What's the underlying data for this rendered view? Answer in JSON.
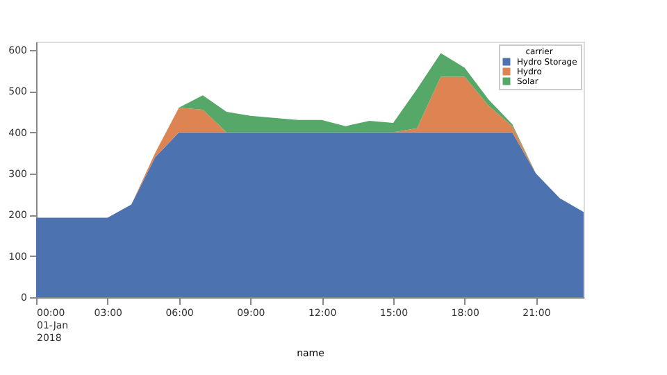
{
  "chart_data": {
    "type": "area",
    "stacked": true,
    "xlabel": "name",
    "legend_title": "carrier",
    "legend": "top right",
    "grid": false,
    "x": [
      "2018-01-01T00:00",
      "2018-01-01T01:00",
      "2018-01-01T02:00",
      "2018-01-01T03:00",
      "2018-01-01T04:00",
      "2018-01-01T05:00",
      "2018-01-01T06:00",
      "2018-01-01T07:00",
      "2018-01-01T08:00",
      "2018-01-01T09:00",
      "2018-01-01T10:00",
      "2018-01-01T11:00",
      "2018-01-01T12:00",
      "2018-01-01T13:00",
      "2018-01-01T14:00",
      "2018-01-01T15:00",
      "2018-01-01T16:00",
      "2018-01-01T17:00",
      "2018-01-01T18:00",
      "2018-01-01T19:00",
      "2018-01-01T20:00",
      "2018-01-01T21:00",
      "2018-01-01T22:00",
      "2018-01-01T23:00"
    ],
    "series": [
      {
        "name": "Hydro Storage",
        "color": "#4c72b0",
        "values": [
          193,
          193,
          193,
          193,
          225,
          340,
          400,
          400,
          400,
          400,
          400,
          400,
          400,
          400,
          400,
          400,
          400,
          400,
          400,
          400,
          400,
          300,
          240,
          207
        ]
      },
      {
        "name": "Hydro",
        "color": "#dd8452",
        "values": [
          0,
          0,
          0,
          0,
          0,
          10,
          60,
          55,
          0,
          0,
          0,
          0,
          0,
          0,
          0,
          0,
          10,
          135,
          135,
          65,
          15,
          0,
          0,
          0
        ]
      },
      {
        "name": "Solar",
        "color": "#55a868",
        "values": [
          0,
          0,
          0,
          0,
          0,
          0,
          0,
          35,
          50,
          40,
          35,
          30,
          30,
          15,
          28,
          23,
          95,
          57,
          22,
          15,
          5,
          0,
          0,
          0
        ]
      }
    ],
    "xlim": [
      "2018-01-01T00:00",
      "2018-01-01T23:00"
    ],
    "xticks": [
      {
        "value": "2018-01-01T00:00",
        "label": "00:00\n01-Jan\n2018"
      },
      {
        "value": "2018-01-01T03:00",
        "label": "03:00"
      },
      {
        "value": "2018-01-01T06:00",
        "label": "06:00"
      },
      {
        "value": "2018-01-01T09:00",
        "label": "09:00"
      },
      {
        "value": "2018-01-01T12:00",
        "label": "12:00"
      },
      {
        "value": "2018-01-01T15:00",
        "label": "15:00"
      },
      {
        "value": "2018-01-01T18:00",
        "label": "18:00"
      },
      {
        "value": "2018-01-01T21:00",
        "label": "21:00"
      }
    ],
    "ylim": [
      0,
      620
    ],
    "yticks": [
      0,
      100,
      200,
      300,
      400,
      500,
      600
    ]
  }
}
